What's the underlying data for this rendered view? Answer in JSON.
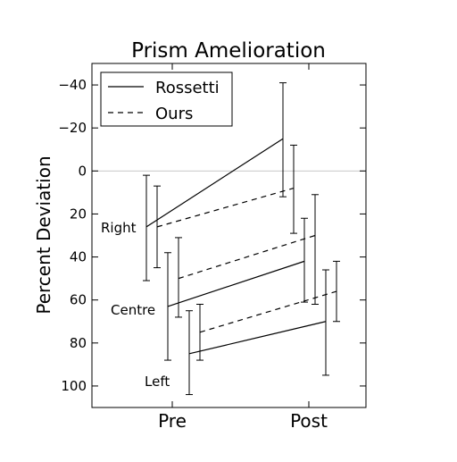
{
  "chart_data": {
    "type": "line",
    "title": "Prism Amelioration",
    "xlabel": "",
    "ylabel": "Percent Deviation",
    "categories": [
      "Pre",
      "Post"
    ],
    "ylim": [
      110,
      -50
    ],
    "y_inverted": true,
    "yticks": [
      -40,
      -20,
      0,
      20,
      40,
      60,
      80,
      100
    ],
    "grid": false,
    "reference_line": 0,
    "legend": {
      "placement": "top-left",
      "entries": [
        {
          "name": "Rossetti",
          "style": "solid"
        },
        {
          "name": "Ours",
          "style": "dashed"
        }
      ]
    },
    "groups": [
      "Right",
      "Centre",
      "Left"
    ],
    "series": [
      {
        "name": "Rossetti",
        "group": "Right",
        "style": "solid",
        "values": [
          26,
          -15
        ],
        "errors": [
          [
            2,
            51
          ],
          [
            -41,
            12
          ]
        ]
      },
      {
        "name": "Ours",
        "group": "Right",
        "style": "dashed",
        "values": [
          26,
          8
        ],
        "errors": [
          [
            7,
            45
          ],
          [
            -12,
            29
          ]
        ]
      },
      {
        "name": "Rossetti",
        "group": "Centre",
        "style": "solid",
        "values": [
          63,
          42
        ],
        "errors": [
          [
            38,
            88
          ],
          [
            22,
            61
          ]
        ]
      },
      {
        "name": "Ours",
        "group": "Centre",
        "style": "dashed",
        "values": [
          50,
          30
        ],
        "errors": [
          [
            31,
            68
          ],
          [
            11,
            62
          ]
        ]
      },
      {
        "name": "Rossetti",
        "group": "Left",
        "style": "solid",
        "values": [
          85,
          70
        ],
        "errors": [
          [
            65,
            104
          ],
          [
            46,
            95
          ]
        ]
      },
      {
        "name": "Ours",
        "group": "Left",
        "style": "dashed",
        "values": [
          75,
          56
        ],
        "errors": [
          [
            62,
            88
          ],
          [
            42,
            70
          ]
        ]
      }
    ],
    "colors": {
      "line": "#000000",
      "reference": "#c8c8c8",
      "background": "#ffffff"
    }
  }
}
